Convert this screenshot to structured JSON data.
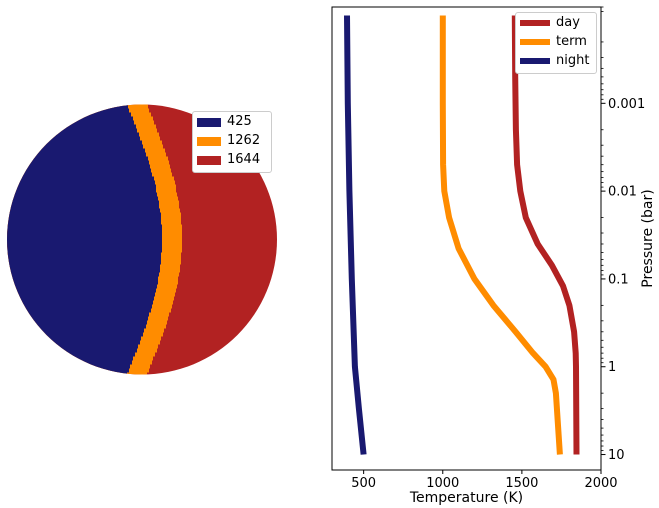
{
  "chart_data": [
    {
      "type": "other",
      "description_kind": "planet-map",
      "regions": [
        {
          "label": "425",
          "color": "#191970"
        },
        {
          "label": "1262",
          "color": "#ff8c00"
        },
        {
          "label": "1644",
          "color": "#b22222"
        }
      ],
      "legend": {
        "placement": "top-right",
        "entries": [
          "425",
          "1262",
          "1644"
        ]
      }
    },
    {
      "type": "line",
      "xlabel": "Temperature (K)",
      "ylabel": "Pressure (bar)",
      "xlim": [
        300,
        2000
      ],
      "ylim": [
        8e-05,
        15
      ],
      "y_scale": "log",
      "y_inverted": true,
      "y_axis_side": "right",
      "xticks": [
        "500",
        "1000",
        "1500",
        "2000"
      ],
      "yticks": [
        {
          "label": "0.001",
          "value": 0.001
        },
        {
          "label": "0.01",
          "value": 0.01
        },
        {
          "label": "0.1",
          "value": 0.1
        },
        {
          "label": "1",
          "value": 1
        },
        {
          "label": "10",
          "value": 10
        }
      ],
      "legend": {
        "placement": "top-right",
        "entries": [
          "day",
          "term",
          "night"
        ]
      },
      "series": [
        {
          "name": "day",
          "color": "#b22222",
          "points": [
            [
              1455,
              0.0001
            ],
            [
              1458,
              0.0005
            ],
            [
              1462,
              0.002
            ],
            [
              1470,
              0.005
            ],
            [
              1490,
              0.01
            ],
            [
              1525,
              0.02
            ],
            [
              1600,
              0.04
            ],
            [
              1690,
              0.07
            ],
            [
              1760,
              0.12
            ],
            [
              1800,
              0.2
            ],
            [
              1830,
              0.4
            ],
            [
              1840,
              0.7
            ],
            [
              1842,
              1
            ],
            [
              1845,
              10
            ]
          ]
        },
        {
          "name": "term",
          "color": "#ff8c00",
          "points": [
            [
              1000,
              0.0001
            ],
            [
              1000,
              0.001
            ],
            [
              1002,
              0.005
            ],
            [
              1010,
              0.01
            ],
            [
              1040,
              0.02
            ],
            [
              1100,
              0.045
            ],
            [
              1200,
              0.1
            ],
            [
              1320,
              0.2
            ],
            [
              1460,
              0.4
            ],
            [
              1570,
              0.7
            ],
            [
              1650,
              1
            ],
            [
              1700,
              1.4
            ],
            [
              1715,
              2
            ],
            [
              1740,
              10
            ]
          ]
        },
        {
          "name": "night",
          "color": "#191970",
          "points": [
            [
              395,
              0.0001
            ],
            [
              400,
              0.001
            ],
            [
              410,
              0.01
            ],
            [
              425,
              0.1
            ],
            [
              445,
              1
            ],
            [
              470,
              3
            ],
            [
              500,
              10
            ]
          ]
        }
      ]
    }
  ]
}
